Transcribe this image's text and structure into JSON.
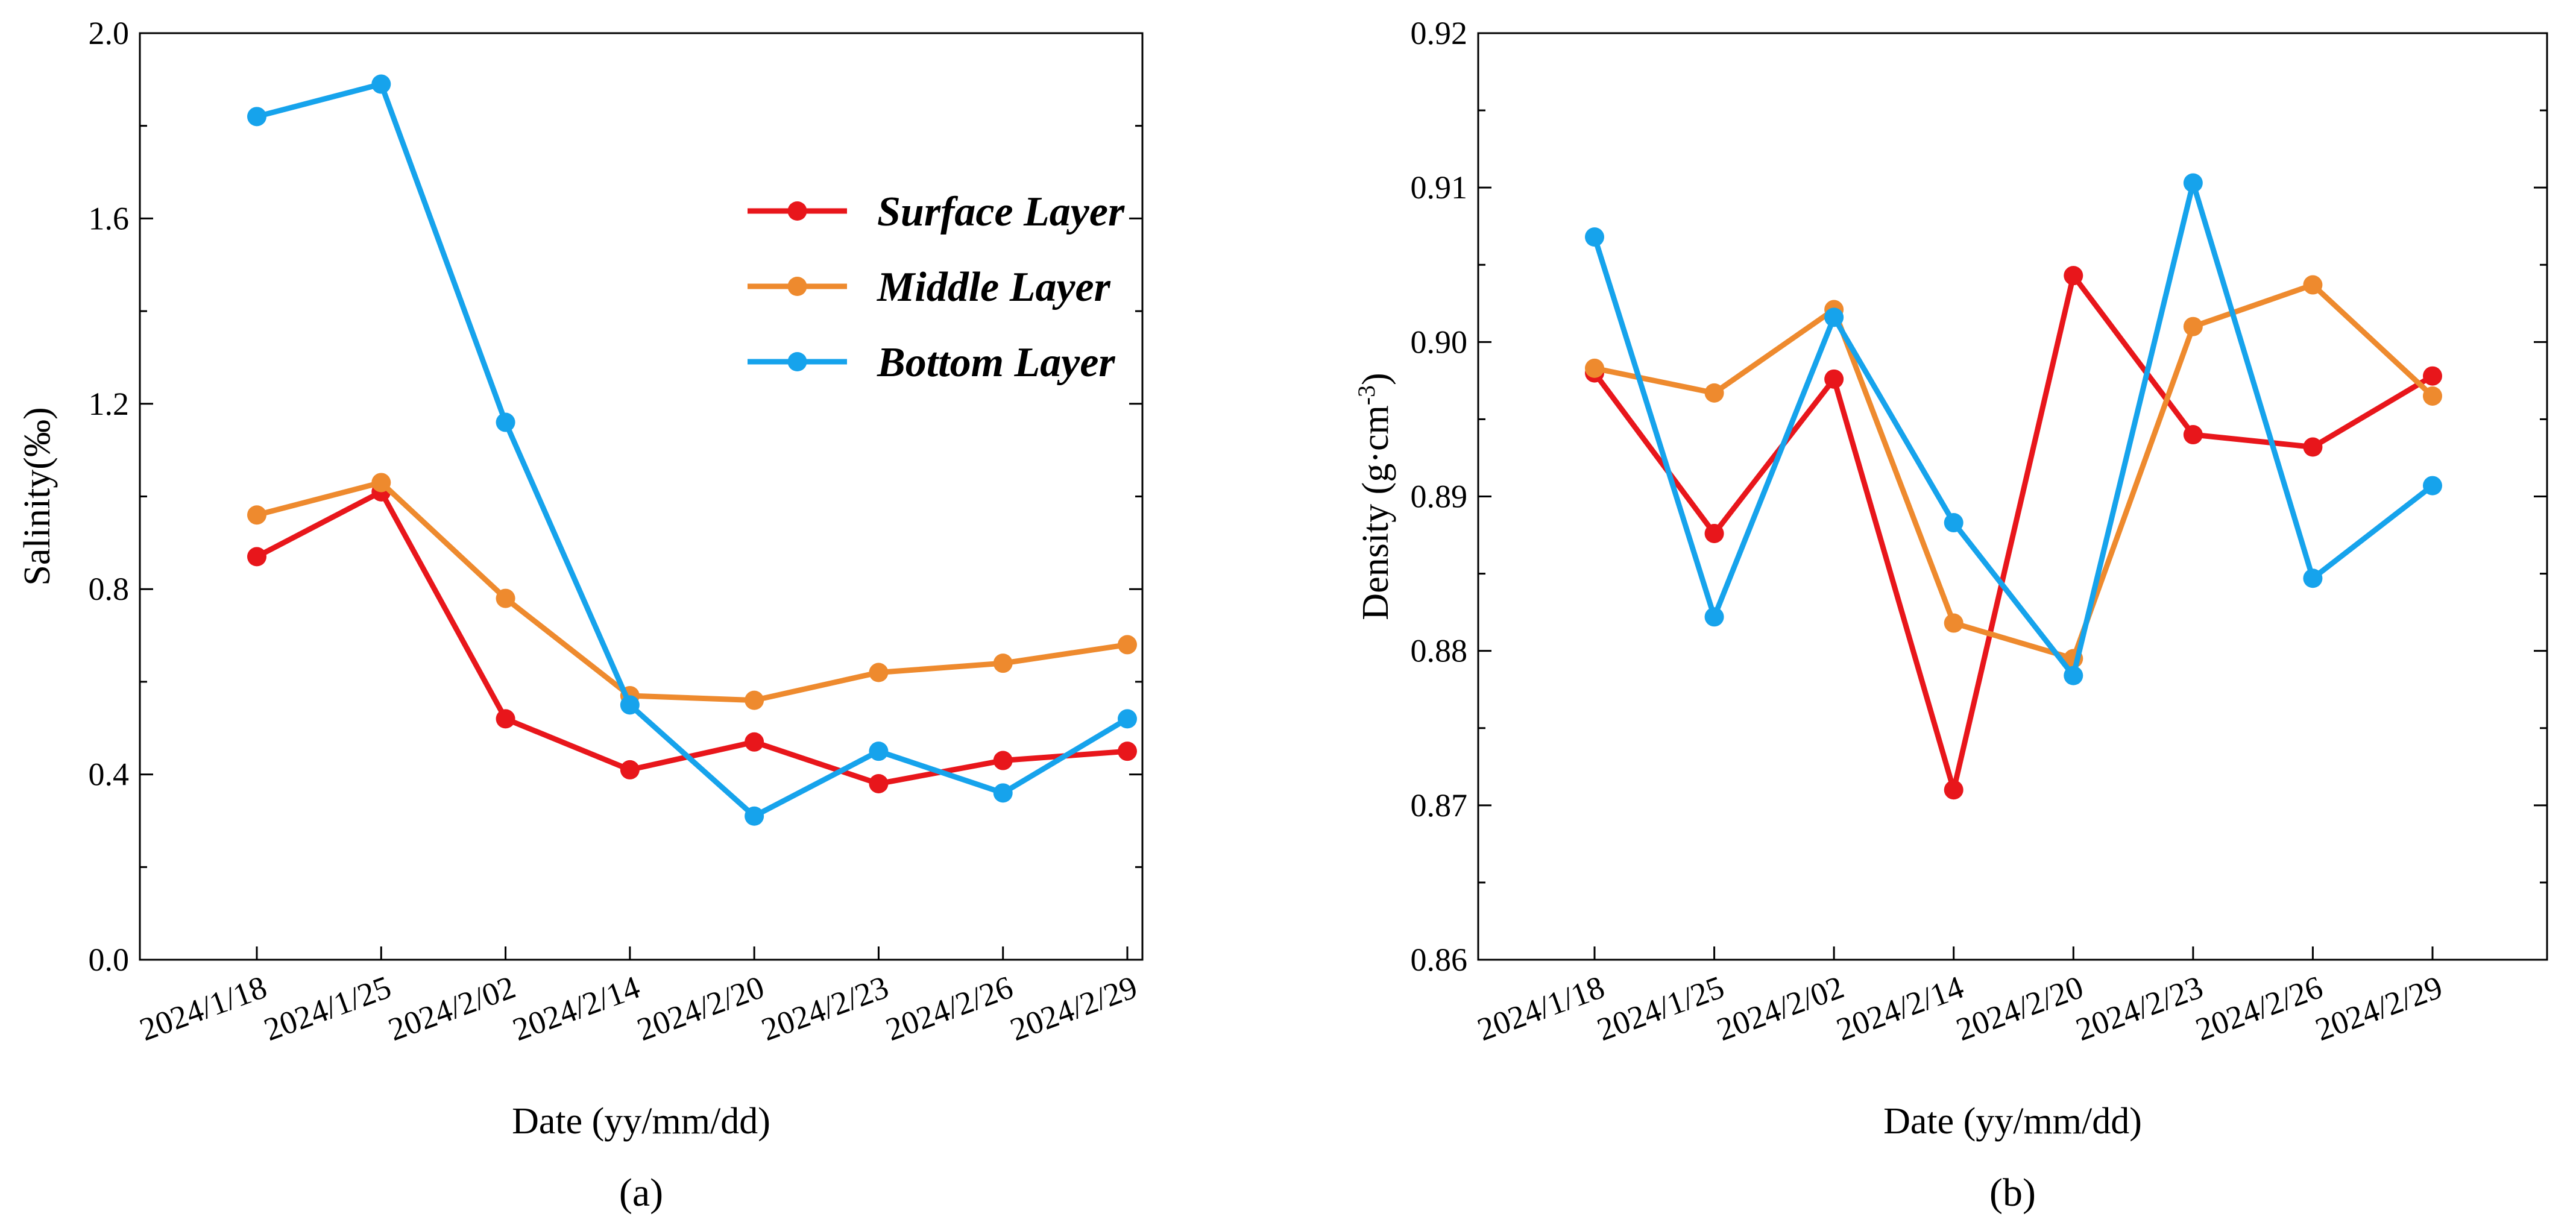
{
  "chart_data": [
    {
      "type": "line",
      "panel_label": "(a)",
      "xlabel": "Date  (yy/mm/dd)",
      "ylabel": "Salinity(‰)",
      "categories": [
        "2024/1/18",
        "2024/1/25",
        "2024/2/02",
        "2024/2/14",
        "2024/2/20",
        "2024/2/23",
        "2024/2/26",
        "2024/2/29"
      ],
      "ylim": [
        0.0,
        2.0
      ],
      "yticks": [
        "0.0",
        "0.4",
        "0.8",
        "1.2",
        "1.6",
        "2.0"
      ],
      "legend_position": "upper-right",
      "series": [
        {
          "name": "Surface  Layer",
          "color": "#e8161b",
          "values": [
            0.87,
            1.01,
            0.52,
            0.41,
            0.47,
            0.38,
            0.43,
            0.45
          ]
        },
        {
          "name": "Middle  Layer",
          "color": "#ee8a2e",
          "values": [
            0.96,
            1.03,
            0.78,
            0.57,
            0.56,
            0.62,
            0.64,
            0.68
          ]
        },
        {
          "name": "Bottom Layer",
          "color": "#16a3ec",
          "values": [
            1.82,
            1.89,
            1.16,
            0.55,
            0.31,
            0.45,
            0.36,
            0.52
          ]
        }
      ]
    },
    {
      "type": "line",
      "panel_label": "(b)",
      "xlabel": "Date  (yy/mm/dd)",
      "ylabel": "Density (g·cm",
      "ylabel_sup": "-3",
      "ylabel_end": ")",
      "categories": [
        "2024/1/18",
        "2024/1/25",
        "2024/2/02",
        "2024/2/14",
        "2024/2/20",
        "2024/2/23",
        "2024/2/26",
        "2024/2/29"
      ],
      "ylim": [
        0.86,
        0.92
      ],
      "yticks": [
        "0.86",
        "0.87",
        "0.88",
        "0.89",
        "0.90",
        "0.91",
        "0.92"
      ],
      "series": [
        {
          "name": "Surface  Layer",
          "color": "#e8161b",
          "values": [
            0.898,
            0.8876,
            0.8976,
            0.871,
            0.9043,
            0.894,
            0.8932,
            0.8978
          ]
        },
        {
          "name": "Middle  Layer",
          "color": "#ee8a2e",
          "values": [
            0.8983,
            0.8967,
            0.9021,
            0.8818,
            0.8795,
            0.901,
            0.9037,
            0.8965
          ]
        },
        {
          "name": "Bottom Layer",
          "color": "#16a3ec",
          "values": [
            0.9068,
            0.8822,
            0.9016,
            0.8883,
            0.8784,
            0.9103,
            0.8847,
            0.8907
          ]
        }
      ]
    }
  ]
}
